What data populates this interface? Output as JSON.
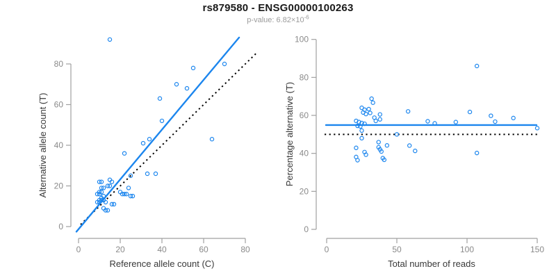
{
  "header": {
    "title": "rs879580 - ENSG00000100263",
    "p_value": {
      "label": "p-value:",
      "base": "6.82×10",
      "exponent": "-6"
    }
  },
  "colors": {
    "accent_blue": "#1C86EE",
    "reference_black": "#000000",
    "axis_stroke_gray": "#a0a0a0",
    "tick_label_gray": "#8a8a8a",
    "axis_label_dark": "#383838",
    "subtitle_gray": "#9b9b9b",
    "background": "#ffffff"
  },
  "chart_data": [
    {
      "type": "scatter",
      "panel": "left",
      "xlabel": "Reference allele count (C)",
      "ylabel": "Alternative allele count (T)",
      "xticks": [
        0,
        20,
        40,
        60,
        80
      ],
      "yticks": [
        0,
        20,
        40,
        60,
        80
      ],
      "xlim": [
        0,
        88
      ],
      "ylim": [
        0,
        95
      ],
      "marker": {
        "shape": "open-circle",
        "color": "#1C86EE"
      },
      "points": [
        [
          15,
          92
        ],
        [
          70,
          80
        ],
        [
          55,
          78
        ],
        [
          47,
          70
        ],
        [
          52,
          68
        ],
        [
          39,
          63
        ],
        [
          40,
          52
        ],
        [
          64,
          43
        ],
        [
          34,
          43
        ],
        [
          31,
          41
        ],
        [
          22,
          36
        ],
        [
          33,
          26
        ],
        [
          37,
          26
        ],
        [
          25,
          25
        ],
        [
          24,
          19
        ],
        [
          20,
          17
        ],
        [
          21,
          16
        ],
        [
          22,
          16
        ],
        [
          23,
          16
        ],
        [
          25,
          15
        ],
        [
          26,
          15
        ],
        [
          10,
          22
        ],
        [
          11,
          22
        ],
        [
          15,
          23
        ],
        [
          16,
          22
        ],
        [
          15,
          20
        ],
        [
          14,
          20
        ],
        [
          12,
          19
        ],
        [
          11,
          19
        ],
        [
          10,
          17
        ],
        [
          11,
          17
        ],
        [
          9,
          16
        ],
        [
          10,
          16
        ],
        [
          11,
          14
        ],
        [
          10,
          13
        ],
        [
          11,
          13
        ],
        [
          12,
          13
        ],
        [
          9,
          12
        ],
        [
          10,
          12
        ],
        [
          13,
          12
        ],
        [
          16,
          11
        ],
        [
          17,
          11
        ],
        [
          12,
          9
        ],
        [
          13,
          8
        ],
        [
          14,
          8
        ],
        [
          12,
          15
        ]
      ],
      "fit_line": {
        "style": "solid",
        "color": "#1C86EE",
        "x1": -1,
        "y1": -2.5,
        "x2": 77,
        "y2": 93
      },
      "identity_line": {
        "style": "dotted",
        "color": "#000000",
        "x1": 1,
        "y1": 1,
        "x2": 85.5,
        "y2": 85.5
      }
    },
    {
      "type": "scatter",
      "panel": "right",
      "xlabel": "Total number of reads",
      "ylabel": "Percentage alternative (T)",
      "xticks": [
        0,
        50,
        100,
        150
      ],
      "yticks": [
        0,
        20,
        40,
        60,
        80,
        100
      ],
      "xlim": [
        0,
        152
      ],
      "ylim": [
        0,
        100
      ],
      "marker": {
        "shape": "open-circle",
        "color": "#1C86EE"
      },
      "points": [
        [
          107,
          86
        ],
        [
          150,
          53.3
        ],
        [
          133,
          58.6
        ],
        [
          117,
          59.8
        ],
        [
          120,
          56.7
        ],
        [
          102,
          61.8
        ],
        [
          92,
          56.5
        ],
        [
          107,
          40.2
        ],
        [
          77,
          55.8
        ],
        [
          72,
          56.9
        ],
        [
          58,
          62.1
        ],
        [
          59,
          44.1
        ],
        [
          63,
          41.3
        ],
        [
          50,
          50
        ],
        [
          43,
          44.2
        ],
        [
          37,
          45.9
        ],
        [
          37,
          43.2
        ],
        [
          38,
          42.1
        ],
        [
          39,
          41
        ],
        [
          40,
          37.5
        ],
        [
          41,
          36.6
        ],
        [
          32,
          68.8
        ],
        [
          33,
          66.7
        ],
        [
          38,
          60.5
        ],
        [
          38,
          57.9
        ],
        [
          35,
          57.1
        ],
        [
          34,
          58.8
        ],
        [
          31,
          61.3
        ],
        [
          30,
          63.3
        ],
        [
          27,
          63
        ],
        [
          28,
          60.7
        ],
        [
          25,
          64
        ],
        [
          26,
          61.5
        ],
        [
          25,
          56
        ],
        [
          23,
          56.5
        ],
        [
          24,
          54.2
        ],
        [
          25,
          52
        ],
        [
          21,
          57.1
        ],
        [
          22,
          54.5
        ],
        [
          25,
          48
        ],
        [
          27,
          40.7
        ],
        [
          28,
          39.3
        ],
        [
          21,
          42.9
        ],
        [
          21,
          38.1
        ],
        [
          22,
          36.4
        ],
        [
          27,
          55.6
        ]
      ],
      "mean_line": {
        "style": "solid",
        "color": "#1C86EE",
        "y": 54.9
      },
      "reference_line": {
        "style": "dotted",
        "color": "#000000",
        "y": 50
      }
    }
  ]
}
